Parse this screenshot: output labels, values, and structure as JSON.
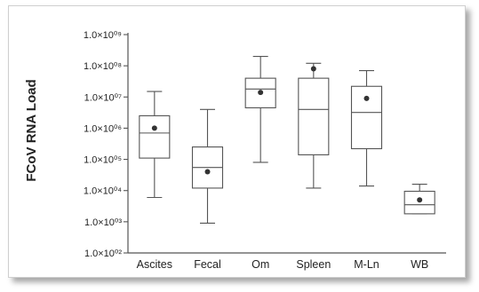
{
  "chart_data": {
    "type": "box",
    "ylabel": "FCoV RNA Load",
    "yscale": "log10",
    "ylim": [
      100,
      1000000000
    ],
    "yticks": [
      {
        "value": 100,
        "label": "1.0×10⁰²"
      },
      {
        "value": 1000,
        "label": "1.0×10⁰³"
      },
      {
        "value": 10000,
        "label": "1.0×10⁰⁴"
      },
      {
        "value": 100000,
        "label": "1.0×10⁰⁵"
      },
      {
        "value": 1000000,
        "label": "1.0×10⁰⁶"
      },
      {
        "value": 10000000,
        "label": "1.0×10⁰⁷"
      },
      {
        "value": 100000000,
        "label": "1.0×10⁰⁸"
      },
      {
        "value": 1000000000,
        "label": "1.0×10⁰⁹"
      }
    ],
    "categories": [
      "Ascites",
      "Fecal",
      "Om",
      "Spleen",
      "M-Ln",
      "WB"
    ],
    "boxes": [
      {
        "min": 6000,
        "q1": 110000,
        "median": 700000,
        "q3": 2500000,
        "max": 15000000,
        "mean": 1000000
      },
      {
        "min": 900,
        "q1": 12000,
        "median": 55000,
        "q3": 250000,
        "max": 4000000,
        "mean": 40000
      },
      {
        "min": 80000,
        "q1": 4500000,
        "median": 18000000,
        "q3": 40000000,
        "max": 200000000,
        "mean": 14000000
      },
      {
        "min": 12000,
        "q1": 140000,
        "median": 4000000,
        "q3": 40000000,
        "max": 120000000,
        "mean": 80000000
      },
      {
        "min": 14000,
        "q1": 220000,
        "median": 3200000,
        "q3": 22000000,
        "max": 70000000,
        "mean": 9000000
      },
      {
        "min": 1800,
        "q1": 1800,
        "median": 3500,
        "q3": 9500,
        "max": 16000,
        "mean": 5000
      }
    ],
    "grid": false,
    "legend": "none"
  },
  "colors": {
    "axis": "#555555",
    "box": "#555555",
    "mean_marker": "#333333",
    "frame_border": "#cfcfcf"
  }
}
